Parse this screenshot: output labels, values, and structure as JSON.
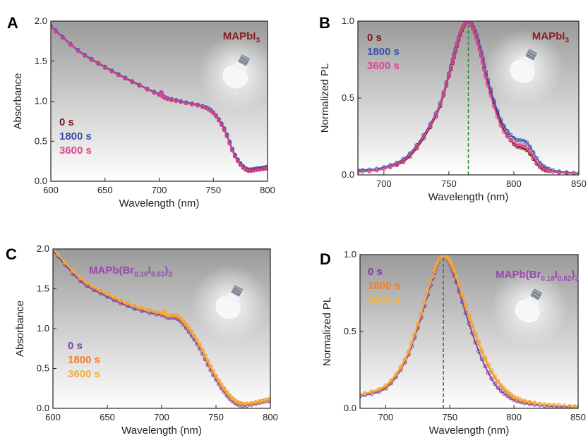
{
  "figure": {
    "title": ""
  },
  "chart_data": [
    {
      "id": "A",
      "panel_label": "A",
      "type": "line",
      "compound": {
        "base": "MAPbI",
        "sub": "3",
        "color": "#8a1c1c"
      },
      "xlabel": "Wavelength (nm)",
      "ylabel": "Absorbance",
      "xlim": [
        600,
        800
      ],
      "ylim": [
        0,
        2.0
      ],
      "xticks": [
        600,
        650,
        700,
        750,
        800
      ],
      "yticks": [
        0.0,
        0.5,
        1.0,
        1.5,
        2.0
      ],
      "ytick_labels": [
        "0.0",
        "0.5",
        "1.0",
        "1.5",
        "2.0"
      ],
      "grid": false,
      "legend_position": "left-middle",
      "series": [
        {
          "name": "0 s",
          "color": "#7a1b1b",
          "x": [
            600,
            625,
            650,
            675,
            700,
            702,
            705,
            720,
            740,
            750,
            760,
            770,
            780,
            790,
            800
          ],
          "y": [
            1.93,
            1.63,
            1.42,
            1.24,
            1.08,
            1.1,
            1.04,
            0.99,
            0.93,
            0.85,
            0.65,
            0.32,
            0.15,
            0.15,
            0.17
          ]
        },
        {
          "name": "1800 s",
          "color": "#3b4fa8",
          "x": [
            600,
            625,
            650,
            675,
            700,
            702,
            705,
            720,
            740,
            750,
            760,
            770,
            780,
            790,
            800
          ],
          "y": [
            1.94,
            1.64,
            1.43,
            1.25,
            1.09,
            1.11,
            1.05,
            1.0,
            0.94,
            0.86,
            0.66,
            0.33,
            0.16,
            0.16,
            0.18
          ]
        },
        {
          "name": "3600 s",
          "color": "#e0458c",
          "x": [
            600,
            625,
            650,
            675,
            700,
            702,
            705,
            720,
            740,
            750,
            760,
            770,
            780,
            790,
            800
          ],
          "y": [
            1.93,
            1.63,
            1.42,
            1.24,
            1.08,
            1.1,
            1.04,
            0.99,
            0.93,
            0.85,
            0.64,
            0.31,
            0.14,
            0.14,
            0.16
          ]
        }
      ]
    },
    {
      "id": "B",
      "panel_label": "B",
      "type": "line",
      "compound": {
        "base": "MAPbI",
        "sub": "3",
        "color": "#8a1c1c"
      },
      "xlabel": "Wavelength (nm)",
      "ylabel": "Normalized PL",
      "xlim": [
        680,
        850
      ],
      "ylim": [
        0,
        1.0
      ],
      "xticks": [
        700,
        750,
        800,
        850
      ],
      "yticks": [
        0.0,
        0.5,
        1.0
      ],
      "ytick_labels": [
        "0.0",
        "0.5",
        "1.0"
      ],
      "grid": false,
      "legend_position": "top-left",
      "marker_line_x": 765,
      "series": [
        {
          "name": "0 s",
          "color": "#7a1b1b",
          "x": [
            680,
            700,
            720,
            740,
            750,
            755,
            760,
            765,
            770,
            775,
            780,
            790,
            800,
            810,
            820,
            830,
            850
          ],
          "y": [
            0.02,
            0.04,
            0.12,
            0.38,
            0.64,
            0.8,
            0.94,
            1.0,
            0.93,
            0.78,
            0.6,
            0.34,
            0.2,
            0.16,
            0.05,
            0.02,
            0.01
          ]
        },
        {
          "name": "1800 s",
          "color": "#3b4fa8",
          "x": [
            680,
            700,
            720,
            740,
            750,
            755,
            760,
            765,
            770,
            775,
            780,
            790,
            800,
            810,
            820,
            830,
            850
          ],
          "y": [
            0.03,
            0.05,
            0.14,
            0.4,
            0.66,
            0.82,
            0.95,
            1.0,
            0.94,
            0.8,
            0.62,
            0.36,
            0.24,
            0.21,
            0.08,
            0.03,
            0.01
          ]
        },
        {
          "name": "3600 s",
          "color": "#e0458c",
          "x": [
            680,
            700,
            720,
            740,
            750,
            755,
            760,
            765,
            770,
            775,
            780,
            790,
            800,
            810,
            820,
            830,
            850
          ],
          "y": [
            0.02,
            0.04,
            0.13,
            0.39,
            0.65,
            0.81,
            0.95,
            1.0,
            0.92,
            0.77,
            0.58,
            0.32,
            0.21,
            0.18,
            0.06,
            0.02,
            0.01
          ]
        }
      ]
    },
    {
      "id": "C",
      "panel_label": "C",
      "type": "line",
      "compound": {
        "base": "MAPb(Br",
        "sub1": "0.18",
        "mid": "I",
        "sub2": "0.82",
        "close": ")",
        "sub3": "3",
        "color": "#9b45b3"
      },
      "xlabel": "Wavelength (nm)",
      "ylabel": "Absorbance",
      "xlim": [
        600,
        800
      ],
      "ylim": [
        0,
        2.0
      ],
      "xticks": [
        600,
        650,
        700,
        750,
        800
      ],
      "yticks": [
        0.0,
        0.5,
        1.0,
        1.5,
        2.0
      ],
      "ytick_labels": [
        "0.0",
        "0.5",
        "1.0",
        "1.5",
        "2.0"
      ],
      "grid": false,
      "legend_position": "left-middle",
      "series": [
        {
          "name": "0 s",
          "color": "#7b3fa0",
          "x": [
            600,
            625,
            650,
            675,
            700,
            702,
            705,
            715,
            725,
            735,
            745,
            755,
            765,
            775,
            790,
            800
          ],
          "y": [
            1.98,
            1.6,
            1.4,
            1.25,
            1.17,
            1.2,
            1.14,
            1.12,
            0.96,
            0.75,
            0.48,
            0.25,
            0.09,
            0.03,
            0.07,
            0.1
          ]
        },
        {
          "name": "1800 s",
          "color": "#f07e2a",
          "x": [
            600,
            625,
            650,
            675,
            700,
            702,
            705,
            715,
            725,
            735,
            745,
            755,
            765,
            775,
            790,
            800
          ],
          "y": [
            2.0,
            1.63,
            1.43,
            1.28,
            1.19,
            1.22,
            1.16,
            1.15,
            1.0,
            0.79,
            0.52,
            0.29,
            0.12,
            0.05,
            0.08,
            0.12
          ]
        },
        {
          "name": "3600 s",
          "color": "#efb043",
          "x": [
            600,
            625,
            650,
            675,
            700,
            702,
            705,
            715,
            725,
            735,
            745,
            755,
            765,
            775,
            790,
            800
          ],
          "y": [
            2.0,
            1.64,
            1.44,
            1.29,
            1.2,
            1.23,
            1.17,
            1.16,
            1.01,
            0.8,
            0.53,
            0.3,
            0.13,
            0.06,
            0.09,
            0.12
          ]
        }
      ]
    },
    {
      "id": "D",
      "panel_label": "D",
      "type": "line",
      "compound": {
        "base": "MAPb(Br",
        "sub1": "0.18",
        "mid": "I",
        "sub2": "0.82",
        "close": ")",
        "sub3": "3",
        "color": "#9b45b3"
      },
      "xlabel": "Wavelength (nm)",
      "ylabel": "Normalized PL",
      "xlim": [
        680,
        850
      ],
      "ylim": [
        0,
        1.0
      ],
      "xticks": [
        700,
        750,
        800,
        850
      ],
      "yticks": [
        0.0,
        0.5,
        1.0
      ],
      "ytick_labels": [
        "0.0",
        "0.5",
        "1.0"
      ],
      "grid": false,
      "legend_position": "top-left",
      "marker_line_x": 745,
      "series": [
        {
          "name": "0 s",
          "color": "#7b3fa0",
          "x": [
            680,
            700,
            715,
            725,
            735,
            740,
            745,
            750,
            755,
            765,
            775,
            785,
            795,
            805,
            820,
            835,
            850
          ],
          "y": [
            0.08,
            0.13,
            0.3,
            0.52,
            0.8,
            0.93,
            1.0,
            0.94,
            0.82,
            0.55,
            0.32,
            0.16,
            0.08,
            0.04,
            0.02,
            0.01,
            0.01
          ]
        },
        {
          "name": "1800 s",
          "color": "#f07e2a",
          "x": [
            680,
            700,
            715,
            725,
            735,
            740,
            745,
            750,
            755,
            765,
            775,
            785,
            795,
            805,
            820,
            835,
            850
          ],
          "y": [
            0.09,
            0.14,
            0.31,
            0.54,
            0.82,
            0.94,
            1.0,
            0.95,
            0.85,
            0.6,
            0.37,
            0.2,
            0.1,
            0.05,
            0.03,
            0.02,
            0.01
          ]
        },
        {
          "name": "3600 s",
          "color": "#efb043",
          "x": [
            680,
            700,
            715,
            725,
            735,
            740,
            745,
            750,
            755,
            765,
            775,
            785,
            795,
            805,
            820,
            835,
            850
          ],
          "y": [
            0.09,
            0.15,
            0.32,
            0.55,
            0.82,
            0.94,
            1.0,
            0.96,
            0.86,
            0.61,
            0.38,
            0.21,
            0.11,
            0.06,
            0.03,
            0.02,
            0.01
          ]
        }
      ]
    }
  ]
}
